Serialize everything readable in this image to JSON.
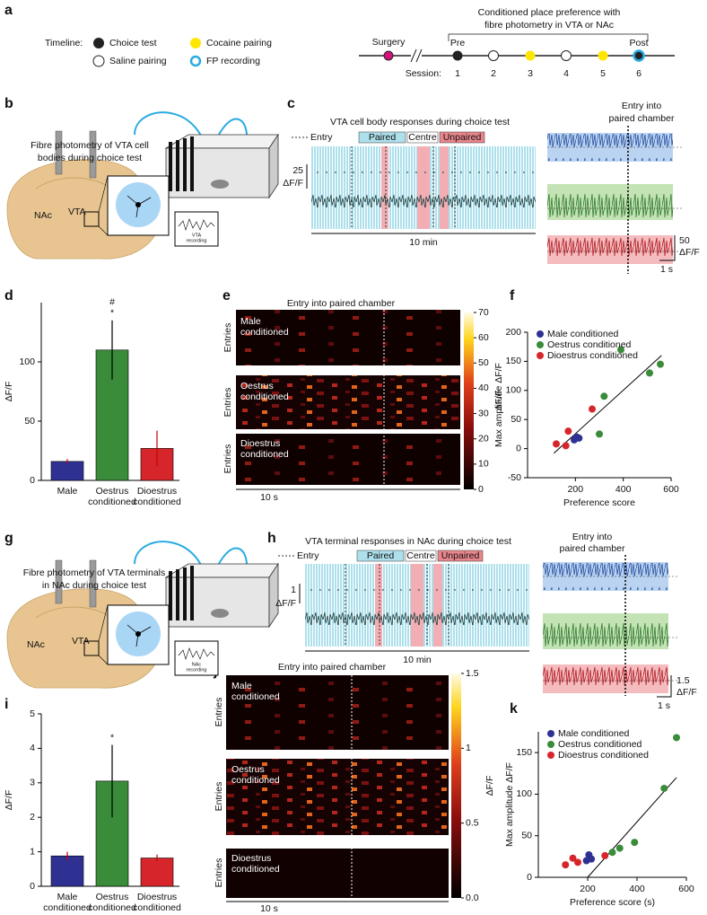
{
  "panel_labels": [
    "a",
    "b",
    "c",
    "d",
    "e",
    "f",
    "g",
    "h",
    "i",
    "j",
    "k"
  ],
  "timeline": {
    "label": "Timeline:",
    "legend": [
      "Choice test",
      "Saline pairing",
      "Cocaine pairing",
      "FP recording"
    ],
    "title": [
      "Conditioned place preference with",
      "fibre photometry in VTA or NAc"
    ],
    "surgery": "Surgery",
    "pre": "Pre",
    "post": "Post",
    "session_label": "Session:",
    "sessions": [
      "1",
      "2",
      "3",
      "4",
      "5",
      "6"
    ]
  },
  "b": {
    "caption": [
      "Fibre photometry of VTA cell",
      "bodies during choice test"
    ],
    "regions": [
      "NAc",
      "VTA"
    ],
    "recording": [
      "VTA",
      "recording"
    ]
  },
  "c": {
    "title": "VTA cell body responses during choice test",
    "legend": [
      "Entry",
      "Paired",
      "Centre",
      "Unpaired"
    ],
    "scale_value": "25",
    "scale_unit": "ΔF/F",
    "time": "10 min",
    "aligned_title": [
      "Entry into",
      "paired chamber"
    ],
    "aligned_scale_value": "50",
    "aligned_scale_unit": "ΔF/F",
    "aligned_time": "1 s"
  },
  "e": {
    "title": "Entry into paired chamber",
    "rows": [
      "Male conditioned",
      "Oestrus conditioned",
      "Dioestrus conditioned"
    ],
    "row_axis": "Entries",
    "time": "10 s",
    "colorbar": {
      "label": "ΔF/F",
      "range": [
        0,
        70
      ],
      "ticks": [
        0,
        10,
        20,
        30,
        40,
        50,
        60,
        70
      ]
    }
  },
  "g": {
    "caption": [
      "Fibre photometry of VTA terminals",
      "in NAc during choice test"
    ],
    "regions": [
      "NAc",
      "VTA"
    ],
    "recording": [
      "NAc",
      "recording"
    ]
  },
  "h": {
    "title": "VTA terminal responses in NAc during choice test",
    "legend": [
      "Entry",
      "Paired",
      "Centre",
      "Unpaired"
    ],
    "scale_value": "1",
    "scale_unit": "ΔF/F",
    "time": "10 min",
    "aligned_title": [
      "Entry into",
      "paired chamber"
    ],
    "aligned_scale_value": "1.5",
    "aligned_scale_unit": "ΔF/F",
    "aligned_time": "1 s"
  },
  "j": {
    "title": "Entry into paired chamber",
    "rows": [
      "Male conditioned",
      "Oestrus conditioned",
      "Dioestrus conditioned"
    ],
    "row_axis": "Entries",
    "time": "10 s",
    "colorbar": {
      "label": "ΔF/F",
      "range": [
        0,
        1.5
      ],
      "ticks": [
        {
          "value": 0,
          "label": "0.0"
        },
        0.5,
        1,
        1.5
      ]
    }
  },
  "chart_data": [
    {
      "type": "bar",
      "categories": [
        "Male",
        "Oestrus conditioned",
        "Dioestrus conditioned"
      ],
      "values": [
        16,
        110,
        27
      ],
      "errors": [
        2,
        25,
        15
      ],
      "colors": [
        "#2e3192",
        "#3a8b3a",
        "#d7262b"
      ],
      "ylabel": "ΔF/F",
      "ylim": [
        0,
        150
      ],
      "yticks": [
        0,
        50,
        100
      ],
      "annotations": {
        "Oestrus conditioned": [
          "#",
          "*"
        ]
      }
    },
    {
      "type": "scatter",
      "series": [
        {
          "name": "Male conditioned",
          "color": "#2e3192",
          "x": [
            195,
            205,
            215
          ],
          "y": [
            15,
            20,
            18
          ]
        },
        {
          "name": "Oestrus conditioned",
          "color": "#3a8b3a",
          "x": [
            300,
            320,
            390,
            510,
            555
          ],
          "y": [
            25,
            90,
            170,
            130,
            145
          ]
        },
        {
          "name": "Dioestrus conditioned",
          "color": "#d7262b",
          "x": [
            120,
            160,
            170,
            270
          ],
          "y": [
            8,
            5,
            30,
            68
          ]
        }
      ],
      "fit": {
        "x": [
          110,
          560
        ],
        "y": [
          -8,
          160
        ]
      },
      "xlabel": "Preference score",
      "ylabel": "Max amplitude ΔF/F",
      "xlim": [
        0,
        600
      ],
      "xticks": [
        200,
        400,
        600
      ],
      "ylim": [
        -50,
        200
      ],
      "yticks": [
        -50,
        0,
        50,
        100,
        150,
        200
      ],
      "legend": "upper left"
    },
    {
      "type": "bar",
      "categories": [
        "Male conditioned",
        "Oestrus conditioned",
        "Dioestrus conditioned"
      ],
      "values": [
        0.88,
        3.05,
        0.82
      ],
      "errors": [
        0.12,
        1.05,
        0.1
      ],
      "colors": [
        "#2e3192",
        "#3a8b3a",
        "#d7262b"
      ],
      "ylabel": "ΔF/F",
      "ylim": [
        0,
        5
      ],
      "yticks": [
        0,
        1,
        2,
        3,
        4,
        5
      ],
      "annotations": {
        "Oestrus conditioned": [
          "*"
        ]
      }
    },
    {
      "type": "scatter",
      "series": [
        {
          "name": "Male conditioned",
          "color": "#2e3192",
          "x": [
            195,
            205,
            215
          ],
          "y": [
            20,
            27,
            22
          ]
        },
        {
          "name": "Oestrus conditioned",
          "color": "#3a8b3a",
          "x": [
            300,
            330,
            390,
            510,
            560
          ],
          "y": [
            30,
            35,
            42,
            107,
            168
          ]
        },
        {
          "name": "Dioestrus conditioned",
          "color": "#d7262b",
          "x": [
            110,
            140,
            160,
            270
          ],
          "y": [
            15,
            23,
            18,
            26
          ]
        }
      ],
      "fit": {
        "x": [
          200,
          560
        ],
        "y": [
          0,
          120
        ]
      },
      "xlabel": "Preference score (s)",
      "ylabel": "Max amplitude ΔF/F",
      "xlim": [
        0,
        600
      ],
      "xticks": [
        200,
        400,
        600
      ],
      "ylim": [
        0,
        175
      ],
      "yticks": [
        0,
        50,
        100,
        150
      ],
      "legend": "upper left"
    }
  ]
}
